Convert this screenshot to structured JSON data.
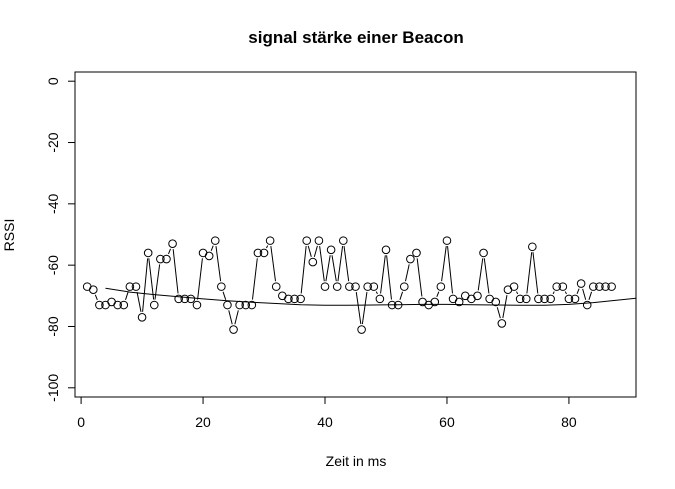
{
  "chart_data": {
    "type": "line",
    "title": "signal stärke einer Beacon",
    "xlabel": "Zeit in ms",
    "ylabel": "RSSI",
    "xlim": [
      -1,
      91
    ],
    "ylim": [
      -103,
      3
    ],
    "x_ticks": [
      0,
      20,
      40,
      60,
      80
    ],
    "y_ticks": [
      0,
      -20,
      -40,
      -60,
      -80,
      -100
    ],
    "grid": false,
    "legend": "none",
    "series": [
      {
        "style": "points-and-lines",
        "marker": "open-circle",
        "color": "#000000",
        "x": [
          1,
          2,
          3,
          4,
          5,
          6,
          7,
          8,
          9,
          10,
          11,
          12,
          13,
          14,
          15,
          16,
          17,
          18,
          19,
          20,
          21,
          22,
          23,
          24,
          25,
          26,
          27,
          28,
          29,
          30,
          31,
          32,
          33,
          34,
          35,
          36,
          37,
          38,
          39,
          40,
          41,
          42,
          43,
          44,
          45,
          46,
          47,
          48,
          49,
          50,
          51,
          52,
          53,
          54,
          55,
          56,
          57,
          58,
          59,
          60,
          61,
          62,
          63,
          64,
          65,
          66,
          67,
          68,
          69,
          70,
          71,
          72,
          73,
          74,
          75,
          76,
          77,
          78,
          79,
          80,
          81,
          82,
          83,
          84,
          85,
          86,
          87
        ],
        "y": [
          -67,
          -68,
          -73,
          -73,
          -72,
          -73,
          -73,
          -67,
          -67,
          -77,
          -56,
          -73,
          -58,
          -58,
          -53,
          -71,
          -71,
          -71,
          -73,
          -56,
          -57,
          -52,
          -67,
          -73,
          -81,
          -73,
          -73,
          -73,
          -56,
          -56,
          -52,
          -67,
          -70,
          -71,
          -71,
          -71,
          -52,
          -59,
          -52,
          -67,
          -55,
          -67,
          -52,
          -67,
          -67,
          -81,
          -67,
          -67,
          -71,
          -55,
          -73,
          -73,
          -67,
          -58,
          -56,
          -72,
          -73,
          -72,
          -67,
          -52,
          -71,
          -72,
          -70,
          -71,
          -70,
          -56,
          -71,
          -72,
          -79,
          -68,
          -67,
          -71,
          -71,
          -54,
          -71,
          -71,
          -71,
          -67,
          -67,
          -71,
          -71,
          -66,
          -73,
          -67,
          -67,
          -67,
          -67
        ]
      },
      {
        "style": "line",
        "color": "#000000",
        "x": [
          4,
          8,
          12,
          16,
          20,
          24,
          28,
          32,
          36,
          40,
          44,
          48,
          52,
          56,
          60,
          64,
          68,
          72,
          76,
          80,
          84,
          88,
          91
        ],
        "y": [
          -67.5,
          -68.8,
          -69.6,
          -70.3,
          -71.0,
          -71.6,
          -72.1,
          -72.5,
          -72.9,
          -73.1,
          -73.1,
          -73.0,
          -72.9,
          -72.8,
          -72.8,
          -72.9,
          -73.0,
          -73.1,
          -73.1,
          -72.8,
          -72.2,
          -71.4,
          -70.8
        ]
      }
    ]
  }
}
